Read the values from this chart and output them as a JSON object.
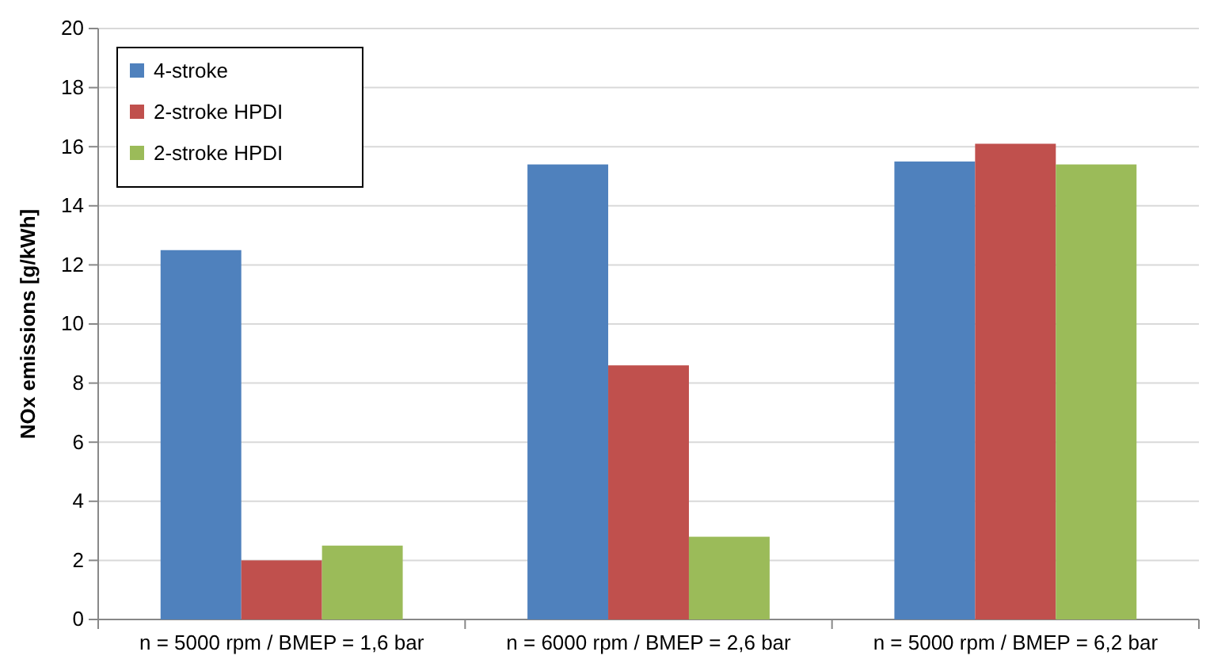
{
  "chart_data": {
    "type": "bar",
    "ylabel": "NOx emissions [g/kWh]",
    "categories": [
      "n = 5000 rpm / BMEP = 1,6 bar",
      "n = 6000 rpm / BMEP = 2,6 bar",
      "n = 5000 rpm / BMEP = 6,2 bar"
    ],
    "series": [
      {
        "name": "4-stroke",
        "color": "#4f81bd",
        "values": [
          12.5,
          15.4,
          15.5
        ]
      },
      {
        "name": "2-stroke HPDI",
        "color": "#c0504d",
        "values": [
          2.0,
          8.6,
          16.1
        ]
      },
      {
        "name": "2-stroke HPDI",
        "color": "#9bbb59",
        "values": [
          2.5,
          2.8,
          15.4
        ]
      }
    ],
    "ylim": [
      0,
      20
    ],
    "yticks": [
      0,
      2,
      4,
      6,
      8,
      10,
      12,
      14,
      16,
      18,
      20
    ],
    "grid": "y",
    "legend": "top left"
  }
}
